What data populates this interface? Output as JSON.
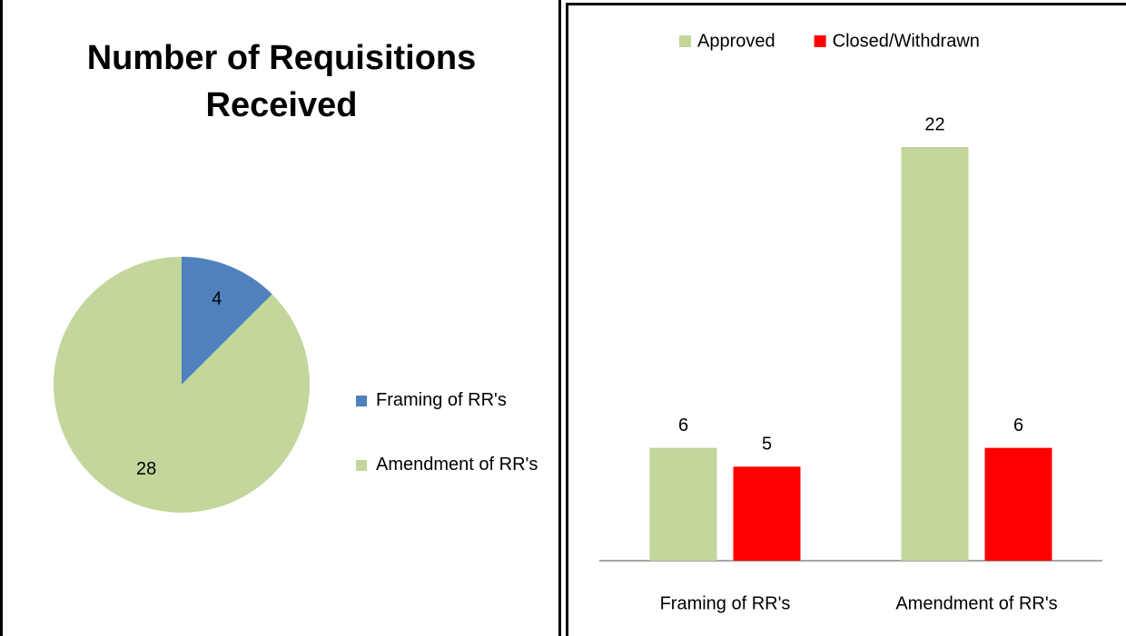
{
  "chart_data": [
    {
      "type": "pie",
      "title": "Number of Requisitions Received",
      "categories": [
        "Framing of RR's",
        "Amendment of RR's"
      ],
      "values": [
        4,
        28
      ],
      "colors": [
        "#4f81bd",
        "#c3d69b"
      ],
      "legend": "right"
    },
    {
      "type": "bar",
      "categories": [
        "Framing of RR's",
        "Amendment of RR's"
      ],
      "series": [
        {
          "name": "Approved",
          "color": "#c3d69b",
          "values": [
            6,
            22
          ]
        },
        {
          "name": "Closed/Withdrawn",
          "color": "#ff0000",
          "values": [
            5,
            6
          ]
        }
      ],
      "legend": "top"
    }
  ]
}
